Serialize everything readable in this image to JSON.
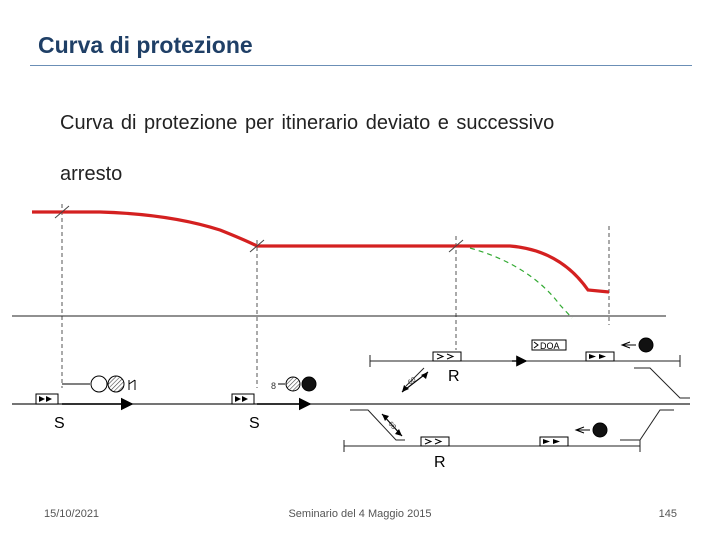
{
  "slide": {
    "title": "Curva di protezione",
    "body_line1": "Curva di protezione per itinerario deviato e successivo",
    "body_line2": "arresto"
  },
  "diagram": {
    "signal_labels": [
      "S",
      "S"
    ],
    "route_labels": [
      "R",
      "R"
    ],
    "doa_label": "DOA",
    "curve_color": "#d42020",
    "alt_curve_color": "#33aa33"
  },
  "footer": {
    "date": "15/10/2021",
    "center": "Seminario del 4 Maggio 2015",
    "page": "145"
  }
}
